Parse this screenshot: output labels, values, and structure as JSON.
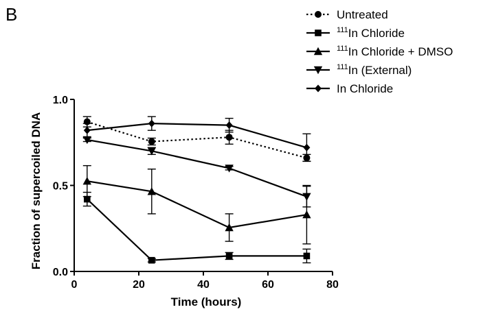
{
  "panel_label": "B",
  "chart_data": {
    "type": "line",
    "title": "",
    "xlabel": "Time (hours)",
    "ylabel": "Fraction of supercoiled DNA",
    "xlim": [
      0,
      80
    ],
    "ylim": [
      0,
      1.0
    ],
    "x_ticks": [
      0,
      20,
      40,
      60,
      80
    ],
    "x_tick_labels": [
      "0",
      "20",
      "40",
      "60",
      "80"
    ],
    "y_ticks": [
      0,
      0.5,
      1.0
    ],
    "y_tick_labels": [
      "0.0",
      "0.5",
      "1.0"
    ],
    "grid": false,
    "legend_position": "top-right",
    "x": [
      4,
      24,
      48,
      72
    ],
    "series": [
      {
        "name_sup": "",
        "name": "Untreated",
        "marker": "circle",
        "line": "dotted",
        "values": [
          0.87,
          0.755,
          0.78,
          0.66
        ],
        "errors": [
          0.03,
          0.02,
          0.04,
          0.02
        ]
      },
      {
        "name_sup": "111",
        "name": "In Chloride",
        "marker": "square",
        "line": "solid",
        "values": [
          0.42,
          0.065,
          0.09,
          0.09
        ],
        "errors": [
          0.04,
          0.01,
          0.02,
          0.04
        ]
      },
      {
        "name_sup": "111",
        "name": "In Chloride + DMSO",
        "marker": "triangle-up",
        "line": "solid",
        "values": [
          0.525,
          0.465,
          0.255,
          0.33
        ],
        "errors": [
          0.09,
          0.13,
          0.08,
          0.17
        ]
      },
      {
        "name_sup": "111",
        "name": "In (External)",
        "marker": "triangle-down",
        "line": "solid",
        "values": [
          0.765,
          0.7,
          0.6,
          0.435
        ],
        "errors": [
          0.01,
          0.02,
          0.01,
          0.06
        ]
      },
      {
        "name_sup": "",
        "name": "In Chloride",
        "marker": "diamond",
        "line": "solid",
        "values": [
          0.82,
          0.86,
          0.85,
          0.72
        ],
        "errors": [
          0.04,
          0.04,
          0.04,
          0.08
        ]
      }
    ]
  }
}
